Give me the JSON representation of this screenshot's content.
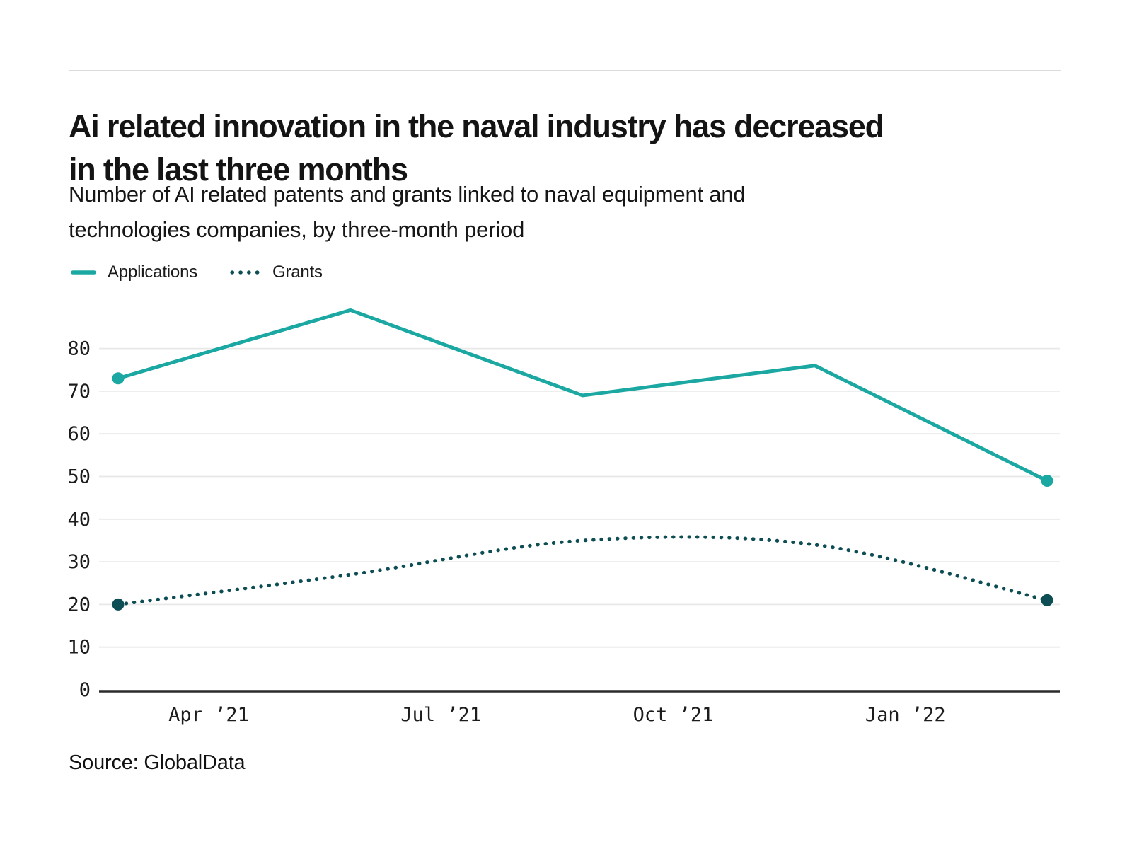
{
  "page": {
    "title": "Ai related innovation in the naval industry has decreased in the last three months",
    "title_lines": [
      "Ai related innovation in the naval industry has decreased",
      "in the last three months"
    ],
    "subtitle": "Number of AI related patents and grants linked to naval equipment and technologies companies, by three-month period",
    "subtitle_lines": [
      "Number of AI related patents and grants linked to naval equipment and",
      "technologies companies, by three-month period"
    ],
    "source": "Source: GlobalData"
  },
  "legend": [
    {
      "label": "Applications",
      "style": "solid",
      "color": "#1CA8A2"
    },
    {
      "label": "Grants",
      "style": "dotted",
      "color": "#0D4D54"
    }
  ],
  "chart_data": {
    "type": "line",
    "x_tick_labels": [
      "Apr ’21",
      "Jul ’21",
      "Oct ’21",
      "Jan ’22"
    ],
    "y_ticks": [
      0,
      10,
      20,
      30,
      40,
      50,
      60,
      70,
      80
    ],
    "ylim": [
      0,
      90
    ],
    "grid": "horizontal",
    "legend_position": "top-left",
    "num_periods": 5,
    "series": [
      {
        "name": "Applications",
        "style": "solid",
        "color": "#1CA8A2",
        "endpoint_markers": true,
        "values": [
          73,
          89,
          69,
          76,
          49
        ]
      },
      {
        "name": "Grants",
        "style": "dotted",
        "color": "#0D4D54",
        "endpoint_markers": true,
        "values": [
          20,
          27,
          35,
          34,
          21
        ]
      }
    ]
  }
}
